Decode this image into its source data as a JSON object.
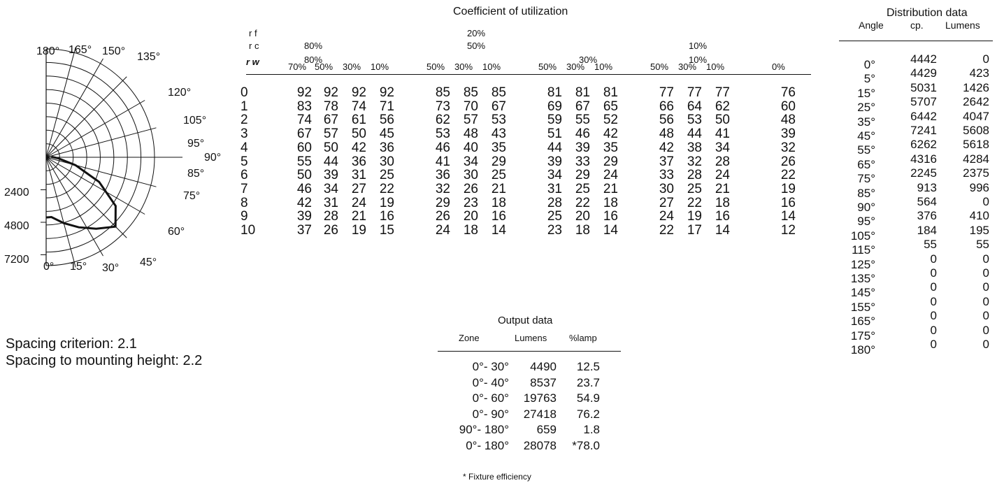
{
  "polar": {
    "top_labels": [
      "180°",
      "165°",
      "150°",
      "135°"
    ],
    "right_labels": [
      "120°",
      "105°",
      "95°",
      "90°",
      "85°",
      "75°",
      "60°"
    ],
    "bottom_labels": [
      "0°",
      "15°",
      "30°",
      "45°"
    ],
    "scale_labels": [
      "2400",
      "4800",
      "7200"
    ]
  },
  "spacing": {
    "criterion": "Spacing criterion: 2.1",
    "mounting": "Spacing to mounting height: 2.2"
  },
  "cu": {
    "title": "Coefficient of utilization",
    "rf_label": "r f",
    "rc_label": "r c",
    "rw_label": "r w",
    "rf_values": [
      "80%",
      "20%",
      "10%"
    ],
    "rc_values": [
      "80%",
      "50%",
      "30%",
      "10%"
    ],
    "rw_values": [
      "70%",
      "50%",
      "30%",
      "10%",
      "50%",
      "30%",
      "10%",
      "50%",
      "30%",
      "10%",
      "50%",
      "30%",
      "10%",
      "0%"
    ],
    "rows": [
      [
        "0",
        "92",
        "92",
        "92",
        "92",
        "85",
        "85",
        "85",
        "81",
        "81",
        "81",
        "77",
        "77",
        "77",
        "76"
      ],
      [
        "1",
        "83",
        "78",
        "74",
        "71",
        "73",
        "70",
        "67",
        "69",
        "67",
        "65",
        "66",
        "64",
        "62",
        "60"
      ],
      [
        "2",
        "74",
        "67",
        "61",
        "56",
        "62",
        "57",
        "53",
        "59",
        "55",
        "52",
        "56",
        "53",
        "50",
        "48"
      ],
      [
        "3",
        "67",
        "57",
        "50",
        "45",
        "53",
        "48",
        "43",
        "51",
        "46",
        "42",
        "48",
        "44",
        "41",
        "39"
      ],
      [
        "4",
        "60",
        "50",
        "42",
        "36",
        "46",
        "40",
        "35",
        "44",
        "39",
        "35",
        "42",
        "38",
        "34",
        "32"
      ],
      [
        "5",
        "55",
        "44",
        "36",
        "30",
        "41",
        "34",
        "29",
        "39",
        "33",
        "29",
        "37",
        "32",
        "28",
        "26"
      ],
      [
        "6",
        "50",
        "39",
        "31",
        "25",
        "36",
        "30",
        "25",
        "34",
        "29",
        "24",
        "33",
        "28",
        "24",
        "22"
      ],
      [
        "7",
        "46",
        "34",
        "27",
        "22",
        "32",
        "26",
        "21",
        "31",
        "25",
        "21",
        "30",
        "25",
        "21",
        "19"
      ],
      [
        "8",
        "42",
        "31",
        "24",
        "19",
        "29",
        "23",
        "18",
        "28",
        "22",
        "18",
        "27",
        "22",
        "18",
        "16"
      ],
      [
        "9",
        "39",
        "28",
        "21",
        "16",
        "26",
        "20",
        "16",
        "25",
        "20",
        "16",
        "24",
        "19",
        "16",
        "14"
      ],
      [
        "10",
        "37",
        "26",
        "19",
        "15",
        "24",
        "18",
        "14",
        "23",
        "18",
        "14",
        "22",
        "17",
        "14",
        "12"
      ]
    ]
  },
  "output": {
    "title": "Output data",
    "headers": [
      "Zone",
      "Lumens",
      "%lamp"
    ],
    "rows": [
      [
        "0°- 30°",
        "4490",
        "12.5"
      ],
      [
        "0°- 40°",
        "8537",
        "23.7"
      ],
      [
        "0°- 60°",
        "19763",
        "54.9"
      ],
      [
        "0°- 90°",
        "27418",
        "76.2"
      ],
      [
        "90°- 180°",
        "659",
        "1.8"
      ],
      [
        "0°- 180°",
        "28078",
        "*78.0"
      ]
    ],
    "note": "* Fixture efficiency"
  },
  "distribution": {
    "title": "Distribution data",
    "headers": [
      "Angle",
      "cp.",
      "Lumens"
    ],
    "rows": [
      [
        "0°",
        "4442",
        "0"
      ],
      [
        "5°",
        "4429",
        "423"
      ],
      [
        "15°",
        "5031",
        "1426"
      ],
      [
        "25°",
        "5707",
        "2642"
      ],
      [
        "35°",
        "6442",
        "4047"
      ],
      [
        "45°",
        "7241",
        "5608"
      ],
      [
        "55°",
        "6262",
        "5618"
      ],
      [
        "65°",
        "4316",
        "4284"
      ],
      [
        "75°",
        "2245",
        "2375"
      ],
      [
        "85°",
        "913",
        "996"
      ],
      [
        "90°",
        "564",
        "0"
      ],
      [
        "95°",
        "376",
        "410"
      ],
      [
        "105°",
        "184",
        "195"
      ],
      [
        "115°",
        "55",
        "55"
      ],
      [
        "125°",
        "0",
        "0"
      ],
      [
        "135°",
        "0",
        "0"
      ],
      [
        "145°",
        "0",
        "0"
      ],
      [
        "155°",
        "0",
        "0"
      ],
      [
        "165°",
        "0",
        "0"
      ],
      [
        "175°",
        "0",
        "0"
      ],
      [
        "180°",
        "0",
        "0"
      ]
    ]
  }
}
